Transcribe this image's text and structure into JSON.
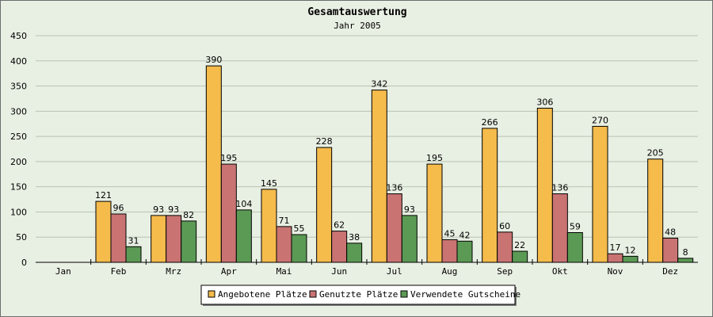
{
  "chart_data": {
    "type": "bar",
    "title": "Gesamtauswertung",
    "subtitle": "Jahr 2005",
    "xlabel": "",
    "ylabel": "",
    "ylim": [
      0,
      450
    ],
    "yticks": [
      0,
      50,
      100,
      150,
      200,
      250,
      300,
      350,
      400,
      450
    ],
    "grid": true,
    "legend_position": "bottom-center",
    "categories": [
      "Jan",
      "Feb",
      "Mrz",
      "Apr",
      "Mai",
      "Jun",
      "Jul",
      "Aug",
      "Sep",
      "Okt",
      "Nov",
      "Dez"
    ],
    "series": [
      {
        "name": "Angebotene Plätze",
        "color": "#f5bb4b",
        "values": [
          0,
          121,
          93,
          390,
          145,
          228,
          342,
          195,
          266,
          306,
          270,
          205
        ]
      },
      {
        "name": "Genutzte Plätze",
        "color": "#c97373",
        "values": [
          0,
          96,
          93,
          195,
          71,
          62,
          136,
          45,
          60,
          136,
          17,
          48
        ]
      },
      {
        "name": "Verwendete Gutscheine",
        "color": "#5b9a55",
        "values": [
          0,
          31,
          82,
          104,
          55,
          38,
          93,
          42,
          22,
          59,
          12,
          8
        ]
      }
    ]
  }
}
